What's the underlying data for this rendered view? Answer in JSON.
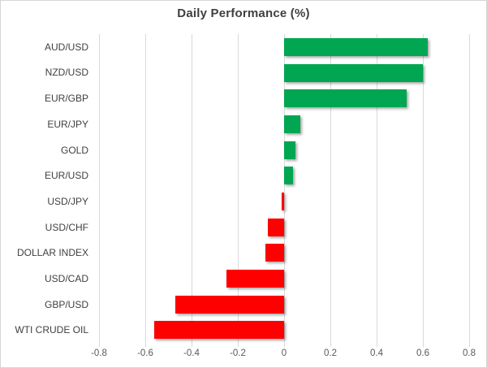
{
  "chart_data": {
    "type": "bar",
    "orientation": "horizontal",
    "title": "Daily Performance (%)",
    "categories": [
      "AUD/USD",
      "NZD/USD",
      "EUR/GBP",
      "EUR/JPY",
      "GOLD",
      "EUR/USD",
      "USD/JPY",
      "USD/CHF",
      "DOLLAR INDEX",
      "USD/CAD",
      "GBP/USD",
      "WTI CRUDE OIL"
    ],
    "values": [
      0.62,
      0.6,
      0.53,
      0.07,
      0.05,
      0.04,
      -0.01,
      -0.07,
      -0.08,
      -0.25,
      -0.47,
      -0.56
    ],
    "xlabel": "",
    "ylabel": "",
    "xlim": [
      -0.8,
      0.8
    ],
    "x_tick_labels": [
      "-0.8",
      "-0.6",
      "-0.4",
      "-0.2",
      "0",
      "0.2",
      "0.4",
      "0.6",
      "0.8"
    ],
    "x_tick_values": [
      -0.8,
      -0.6,
      -0.4,
      -0.2,
      0,
      0.2,
      0.4,
      0.6,
      0.8
    ],
    "grid": "vertical-only",
    "legend": "none"
  },
  "colors": {
    "positive_bar": "#00a651",
    "negative_bar": "#ff0000",
    "gridline": "#d9d9d9",
    "title_text": "#3f3f3f",
    "category_text": "#404040",
    "tick_text": "#595959",
    "background": "#ffffff",
    "border": "#d6d6d6"
  }
}
